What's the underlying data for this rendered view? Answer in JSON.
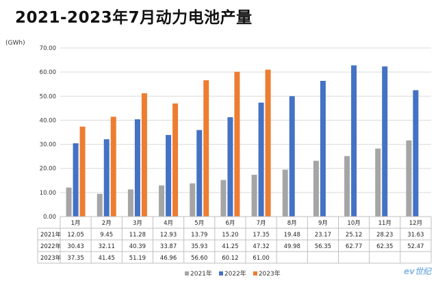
{
  "title": "2021-2023年7月动力电池产量",
  "watermark": "ev世纪",
  "chart_data": {
    "type": "bar",
    "unit": "(GWh)",
    "categories": [
      "1月",
      "2月",
      "3月",
      "4月",
      "5月",
      "6月",
      "7月",
      "8月",
      "9月",
      "10月",
      "11月",
      "12月"
    ],
    "ylim": [
      0,
      70
    ],
    "yticks": [
      "0.00",
      "10.00",
      "20.00",
      "30.00",
      "40.00",
      "50.00",
      "60.00",
      "70.00"
    ],
    "grid": true,
    "legend_position": "bottom",
    "series": [
      {
        "name": "2021年",
        "color": "#a5a5a5",
        "values": [
          12.05,
          9.45,
          11.28,
          12.93,
          13.79,
          15.2,
          17.35,
          19.48,
          23.17,
          25.12,
          28.23,
          31.63
        ]
      },
      {
        "name": "2022年",
        "color": "#4472c4",
        "values": [
          30.43,
          32.11,
          40.39,
          33.87,
          35.93,
          41.25,
          47.32,
          49.98,
          56.35,
          62.77,
          62.35,
          52.47
        ]
      },
      {
        "name": "2023年",
        "color": "#ed7d31",
        "values": [
          37.35,
          41.45,
          51.19,
          46.96,
          56.6,
          60.12,
          61.0,
          null,
          null,
          null,
          null,
          null
        ]
      }
    ]
  }
}
